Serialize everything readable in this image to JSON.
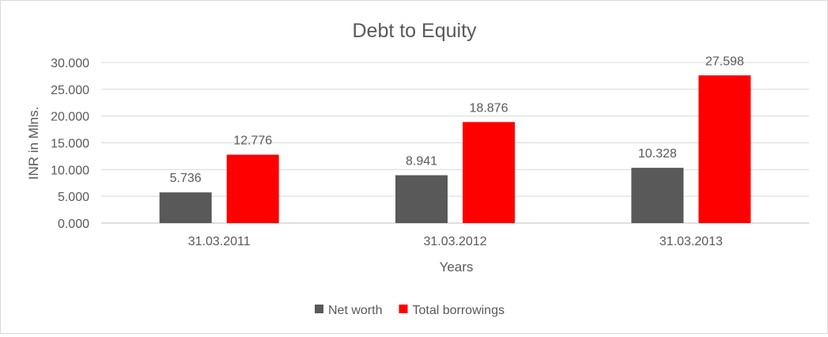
{
  "chart_data": {
    "type": "bar",
    "title": "Debt to Equity",
    "xlabel": "Years",
    "ylabel": "INR in Mlns.",
    "categories": [
      "31.03.2011",
      "31.03.2012",
      "31.03.2013"
    ],
    "series": [
      {
        "name": "Net worth",
        "values": [
          5.736,
          8.941,
          10.328
        ],
        "labels": [
          "5.736",
          "8.941",
          "10.328"
        ],
        "color": "#595959"
      },
      {
        "name": "Total borrowings",
        "values": [
          12.776,
          18.876,
          27.598
        ],
        "labels": [
          "12.776",
          "18.876",
          "27.598"
        ],
        "color": "#ff0000"
      }
    ],
    "ylim": [
      0,
      30
    ],
    "yticks": [
      "0.000",
      "5.000",
      "10.000",
      "15.000",
      "20.000",
      "25.000",
      "30.000"
    ],
    "grid": true,
    "legend": "bottom"
  }
}
